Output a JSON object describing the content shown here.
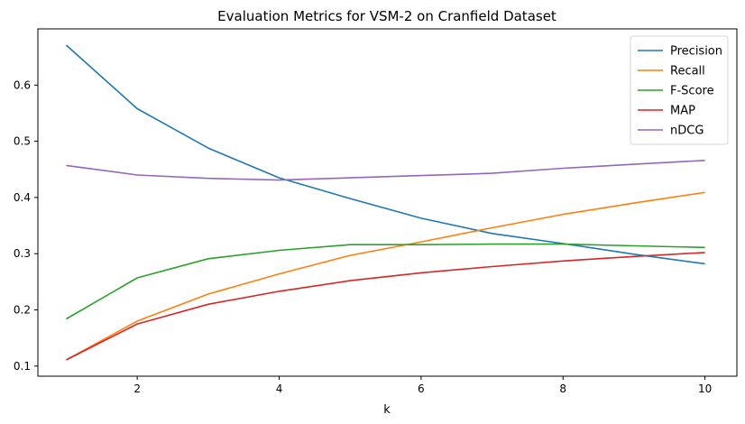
{
  "chart_data": {
    "type": "line",
    "title": "Evaluation Metrics for VSM-2 on Cranfield Dataset",
    "xlabel": "k",
    "ylabel": "",
    "x": [
      1,
      2,
      3,
      4,
      5,
      6,
      7,
      8,
      9,
      10
    ],
    "xlim": [
      0.6,
      10.45
    ],
    "ylim": [
      0.082,
      0.7
    ],
    "x_ticks": [
      2,
      4,
      6,
      8,
      10
    ],
    "y_ticks": [
      0.1,
      0.2,
      0.3,
      0.4,
      0.5,
      0.6
    ],
    "x_tick_labels": [
      "2",
      "4",
      "6",
      "8",
      "10"
    ],
    "y_tick_labels": [
      "0.1",
      "0.2",
      "0.3",
      "0.4",
      "0.5",
      "0.6"
    ],
    "grid": false,
    "legend_position": "top-right",
    "series": [
      {
        "name": "Precision",
        "color": "#1f77b4",
        "values": [
          0.671,
          0.558,
          0.488,
          0.435,
          0.398,
          0.363,
          0.336,
          0.318,
          0.299,
          0.282
        ]
      },
      {
        "name": "Recall",
        "color": "#ff7f0e",
        "values": [
          0.111,
          0.18,
          0.228,
          0.264,
          0.297,
          0.321,
          0.346,
          0.37,
          0.39,
          0.409
        ]
      },
      {
        "name": "F-Score",
        "color": "#2ca02c",
        "values": [
          0.184,
          0.257,
          0.291,
          0.306,
          0.316,
          0.316,
          0.317,
          0.317,
          0.314,
          0.311
        ]
      },
      {
        "name": "MAP",
        "color": "#d62728",
        "values": [
          0.111,
          0.175,
          0.21,
          0.233,
          0.252,
          0.266,
          0.277,
          0.287,
          0.295,
          0.302
        ]
      },
      {
        "name": "nDCG",
        "color": "#9467bd",
        "values": [
          0.457,
          0.44,
          0.434,
          0.431,
          0.435,
          0.439,
          0.443,
          0.452,
          0.459,
          0.466
        ]
      }
    ]
  }
}
